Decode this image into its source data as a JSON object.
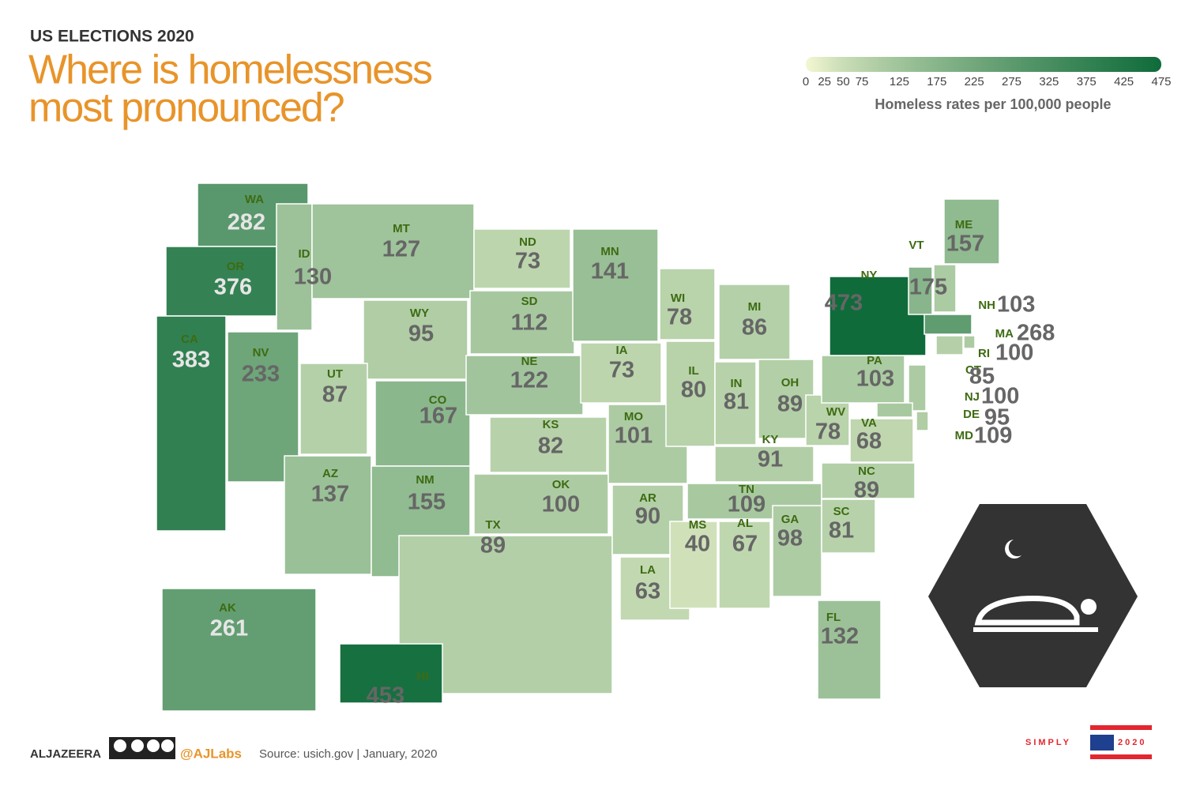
{
  "header": {
    "kicker": "US ELECTIONS 2020",
    "title_lines": [
      "Where is homelessness",
      "most pronounced?"
    ]
  },
  "legend": {
    "title": "Homeless rates per 100,000 people",
    "ticks": [
      0,
      25,
      50,
      75,
      125,
      175,
      225,
      275,
      325,
      375,
      425,
      475
    ],
    "colors": [
      "#f4f7d2",
      "#0f6b3b"
    ]
  },
  "states": [
    {
      "code": "WA",
      "value": 282
    },
    {
      "code": "OR",
      "value": 376
    },
    {
      "code": "CA",
      "value": 383
    },
    {
      "code": "NV",
      "value": 233
    },
    {
      "code": "ID",
      "value": 130
    },
    {
      "code": "MT",
      "value": 127
    },
    {
      "code": "WY",
      "value": 95
    },
    {
      "code": "UT",
      "value": 87
    },
    {
      "code": "CO",
      "value": 167
    },
    {
      "code": "AZ",
      "value": 137
    },
    {
      "code": "NM",
      "value": 155
    },
    {
      "code": "ND",
      "value": 73
    },
    {
      "code": "SD",
      "value": 112
    },
    {
      "code": "NE",
      "value": 122
    },
    {
      "code": "KS",
      "value": 82
    },
    {
      "code": "OK",
      "value": 100
    },
    {
      "code": "TX",
      "value": 89
    },
    {
      "code": "MN",
      "value": 141
    },
    {
      "code": "IA",
      "value": 73
    },
    {
      "code": "MO",
      "value": 101
    },
    {
      "code": "AR",
      "value": 90
    },
    {
      "code": "LA",
      "value": 63
    },
    {
      "code": "WI",
      "value": 78
    },
    {
      "code": "IL",
      "value": 80
    },
    {
      "code": "MI",
      "value": 86
    },
    {
      "code": "IN",
      "value": 81
    },
    {
      "code": "OH",
      "value": 89
    },
    {
      "code": "KY",
      "value": 91
    },
    {
      "code": "TN",
      "value": 109
    },
    {
      "code": "MS",
      "value": 40
    },
    {
      "code": "AL",
      "value": 67
    },
    {
      "code": "GA",
      "value": 98
    },
    {
      "code": "FL",
      "value": 132
    },
    {
      "code": "SC",
      "value": 81
    },
    {
      "code": "NC",
      "value": 89
    },
    {
      "code": "VA",
      "value": 68
    },
    {
      "code": "WV",
      "value": 78
    },
    {
      "code": "PA",
      "value": 103
    },
    {
      "code": "NY",
      "value": 473
    },
    {
      "code": "VT",
      "value": 175
    },
    {
      "code": "NH",
      "value": 103
    },
    {
      "code": "ME",
      "value": 157
    },
    {
      "code": "MA",
      "value": 268
    },
    {
      "code": "RI",
      "value": 100
    },
    {
      "code": "CT",
      "value": 85
    },
    {
      "code": "NJ",
      "value": 100
    },
    {
      "code": "DE",
      "value": 95
    },
    {
      "code": "MD",
      "value": 109
    },
    {
      "code": "AK",
      "value": 261
    },
    {
      "code": "HI",
      "value": 453
    }
  ],
  "footer": {
    "brand": "ALJAZEERA",
    "handle": "@AJLabs",
    "source": "Source: usich.gov | January, 2020",
    "badge_left": "SIMPLY",
    "badge_right": "2020"
  }
}
